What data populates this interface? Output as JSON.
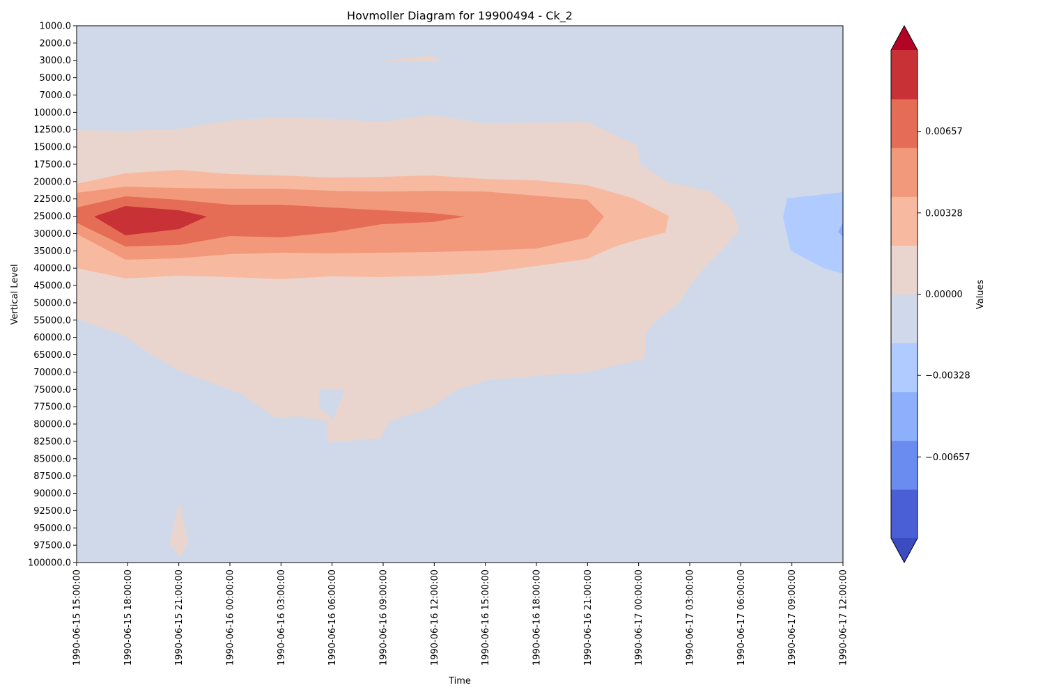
{
  "chart_data": {
    "type": "heatmap",
    "subtype": "filled-contour",
    "title": "Hovmoller Diagram for 19900494 - Ck_2",
    "xlabel": "Time",
    "ylabel": "Vertical Level",
    "y_tick_labels": [
      "1000.0",
      "2000.0",
      "3000.0",
      "5000.0",
      "7000.0",
      "10000.0",
      "12500.0",
      "15000.0",
      "17500.0",
      "20000.0",
      "22500.0",
      "25000.0",
      "30000.0",
      "35000.0",
      "40000.0",
      "45000.0",
      "50000.0",
      "55000.0",
      "60000.0",
      "65000.0",
      "70000.0",
      "75000.0",
      "77500.0",
      "80000.0",
      "82500.0",
      "85000.0",
      "87500.0",
      "90000.0",
      "92500.0",
      "95000.0",
      "97500.0",
      "100000.0"
    ],
    "x_tick_labels": [
      "1990-06-15 15:00:00",
      "1990-06-15 18:00:00",
      "1990-06-15 21:00:00",
      "1990-06-16 00:00:00",
      "1990-06-16 03:00:00",
      "1990-06-16 06:00:00",
      "1990-06-16 09:00:00",
      "1990-06-16 12:00:00",
      "1990-06-16 15:00:00",
      "1990-06-16 18:00:00",
      "1990-06-16 21:00:00",
      "1990-06-17 00:00:00",
      "1990-06-17 03:00:00",
      "1990-06-17 06:00:00",
      "1990-06-17 09:00:00",
      "1990-06-17 12:00:00"
    ],
    "grid": false,
    "legend_placement": "right",
    "colorbar": {
      "label": "Values",
      "extend": "both",
      "levels": [
        -0.00985,
        -0.00821,
        -0.00657,
        -0.00493,
        -0.00328,
        -0.00164,
        0.0,
        0.00164,
        0.00328,
        0.00493,
        0.00657,
        0.00821,
        0.00985
      ],
      "tick_values": [
        -0.00657,
        -0.00328,
        0.0,
        0.00328,
        0.00657
      ],
      "tick_labels": [
        "−0.00657",
        "−0.00328",
        "0.00000",
        "0.00328",
        "0.00657"
      ],
      "under_color": "#3b4cc0",
      "over_color": "#b40426",
      "colors": [
        "#4a5fd6",
        "#6a8bef",
        "#8daffc",
        "#b0cbff",
        "#cfd9ea",
        "#e9d5cd",
        "#f7baa0",
        "#f3997b",
        "#e56d55",
        "#c83236"
      ]
    },
    "contour_regions": [
      {
        "level": "0 to 0.00164",
        "color_index": 5,
        "x_span": [
          "1990-06-15 15:00:00",
          "1990-06-17 06:00:00"
        ],
        "y_span": [
          "12500.0",
          "82500.0"
        ]
      },
      {
        "level": "0 to 0.00164",
        "color_index": 5,
        "x_span": [
          "1990-06-16 09:00:00",
          "1990-06-16 12:00:00"
        ],
        "y_span": [
          "3000.0",
          "3000.0"
        ]
      },
      {
        "level": "0 to 0.00164",
        "color_index": 5,
        "x_span": [
          "1990-06-15 21:00:00",
          "1990-06-15 21:00:00"
        ],
        "y_span": [
          "90000.0",
          "100000.0"
        ]
      },
      {
        "level": "0.00164 to 0.00328",
        "color_index": 6,
        "x_span": [
          "1990-06-15 15:00:00",
          "1990-06-17 00:00:00"
        ],
        "y_span": [
          "20000.0",
          "40000.0"
        ]
      },
      {
        "level": "0.00328 to 0.00493",
        "color_index": 7,
        "x_span": [
          "1990-06-15 15:00:00",
          "1990-06-16 21:00:00"
        ],
        "y_span": [
          "22500.0",
          "35000.0"
        ]
      },
      {
        "level": "0.00493 to 0.00657",
        "color_index": 8,
        "x_span": [
          "1990-06-15 15:00:00",
          "1990-06-16 15:00:00"
        ],
        "y_span": [
          "22500.0",
          "30000.0"
        ]
      },
      {
        "level": "0.00657 to 0.00821",
        "color_index": 9,
        "x_span": [
          "1990-06-15 15:00:00",
          "1990-06-15 21:00:00"
        ],
        "y_span": [
          "22500.0",
          "30000.0"
        ]
      },
      {
        "level": "-0.00164 to 0",
        "color_index": 4,
        "x_span": [
          "1990-06-16 06:00:00",
          "1990-06-16 06:00:00"
        ],
        "y_span": [
          "75000.0",
          "80000.0"
        ]
      },
      {
        "level": "-0.00328 to -0.00164",
        "color_index": 3,
        "x_span": [
          "1990-06-17 09:00:00",
          "1990-06-17 12:00:00"
        ],
        "y_span": [
          "22500.0",
          "40000.0"
        ]
      },
      {
        "level": "-0.00493 to -0.00328",
        "color_index": 2,
        "x_span": [
          "1990-06-17 12:00:00",
          "1990-06-17 12:00:00"
        ],
        "y_span": [
          "30000.0",
          "30000.0"
        ]
      }
    ]
  }
}
